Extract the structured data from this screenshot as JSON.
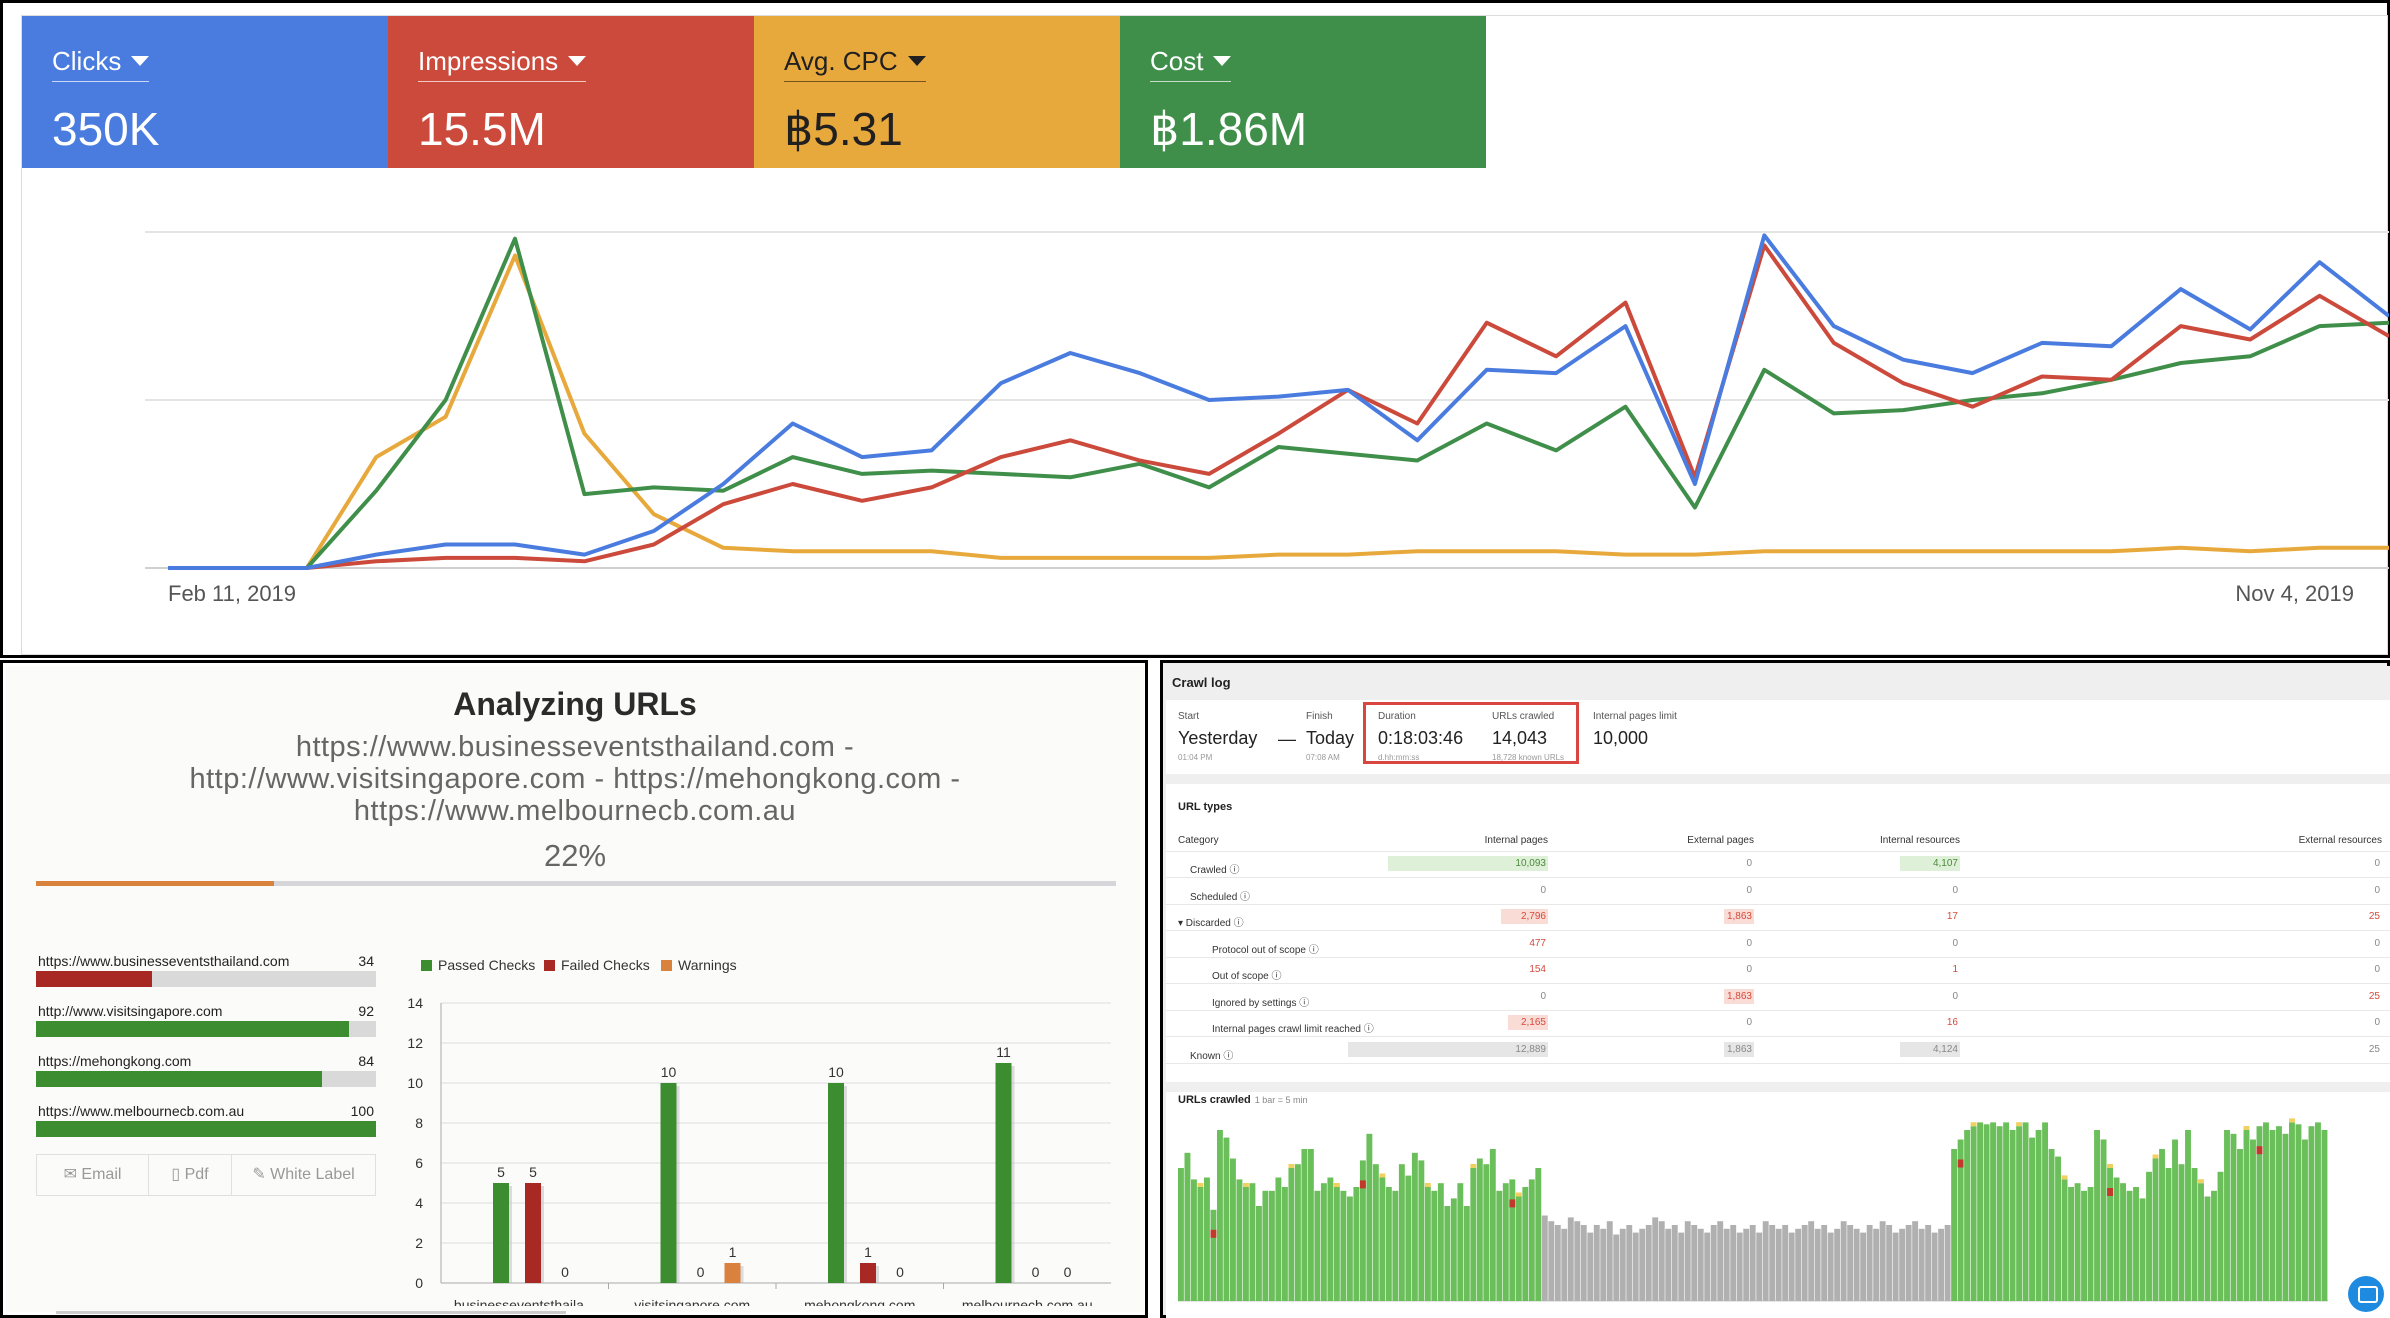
{
  "performance": {
    "metrics": [
      {
        "label": "Clicks",
        "value": "350K",
        "color": "#4a7cdf"
      },
      {
        "label": "Impressions",
        "value": "15.5M",
        "color": "#cc4a3b"
      },
      {
        "label": "Avg. CPC",
        "value": "฿5.31",
        "color": "#e8a93c"
      },
      {
        "label": "Cost",
        "value": "฿1.86M",
        "color": "#3f8f4a"
      }
    ],
    "x_start_label": "Feb 11, 2019",
    "x_end_label": "Nov 4, 2019"
  },
  "chart_data": [
    {
      "type": "line",
      "xlabel": "",
      "ylabel": "",
      "x_labels": [
        "Feb 11, 2019",
        "Nov 4, 2019"
      ],
      "series": [
        {
          "name": "Clicks",
          "color": "#4a7cdf",
          "values": [
            0,
            0,
            0,
            4,
            7,
            7,
            4,
            11,
            25,
            43,
            33,
            35,
            55,
            64,
            58,
            50,
            51,
            53,
            38,
            59,
            58,
            72,
            25,
            99,
            72,
            62,
            58,
            67,
            66,
            83,
            71,
            91,
            75
          ]
        },
        {
          "name": "Impressions",
          "color": "#cc4a3b",
          "values": [
            0,
            0,
            0,
            2,
            3,
            3,
            2,
            7,
            19,
            25,
            20,
            24,
            33,
            38,
            32,
            28,
            40,
            53,
            43,
            73,
            63,
            79,
            27,
            96,
            67,
            55,
            48,
            57,
            56,
            72,
            68,
            81,
            69
          ]
        },
        {
          "name": "Avg. CPC",
          "color": "#e8a93c",
          "values": [
            0,
            0,
            0,
            33,
            45,
            93,
            40,
            16,
            6,
            5,
            5,
            5,
            3,
            3,
            3,
            3,
            4,
            4,
            5,
            5,
            5,
            4,
            4,
            5,
            5,
            5,
            5,
            5,
            5,
            6,
            5,
            6,
            6
          ]
        },
        {
          "name": "Cost",
          "color": "#3f8f4a",
          "values": [
            0,
            0,
            0,
            23,
            50,
            98,
            22,
            24,
            23,
            33,
            28,
            29,
            28,
            27,
            31,
            24,
            36,
            34,
            32,
            43,
            35,
            48,
            18,
            59,
            46,
            47,
            50,
            52,
            56,
            61,
            63,
            72,
            73
          ]
        }
      ]
    },
    {
      "type": "bar",
      "categories": [
        "businesseventsthaila...",
        "visitsingapore.com",
        "mehongkong.com",
        "melbournecb.com.au"
      ],
      "ylim": [
        0,
        14
      ],
      "yticks": [
        "0",
        "2",
        "4",
        "6",
        "8",
        "10",
        "12",
        "14"
      ],
      "series": [
        {
          "name": "Passed Checks",
          "color": "#3c8c30",
          "values": [
            5,
            10,
            10,
            11
          ]
        },
        {
          "name": "Failed Checks",
          "color": "#a82823",
          "values": [
            5,
            0,
            1,
            0
          ]
        },
        {
          "name": "Warnings",
          "color": "#d9823d",
          "values": [
            0,
            1,
            0,
            0
          ]
        }
      ]
    },
    {
      "type": "bar",
      "title": "URLs crawled",
      "subtitle": "1 bar = 5 min",
      "series": [
        {
          "name": "Crawled",
          "color": "#6bbf5a",
          "values": [
            70,
            78,
            64,
            60,
            65,
            48,
            90,
            86,
            75,
            64,
            60,
            62,
            50,
            58,
            58,
            65,
            60,
            70,
            72,
            80,
            80,
            58,
            62,
            65,
            60,
            58,
            55,
            60,
            74,
            88,
            72,
            65,
            60,
            58,
            72,
            66,
            78,
            74,
            60,
            58,
            62,
            50,
            54,
            62,
            50,
            70,
            75,
            72,
            80,
            58,
            62,
            64,
            55,
            60,
            64,
            70,
            45,
            42,
            40,
            38,
            44,
            42,
            40,
            36,
            40,
            38,
            42,
            35,
            38,
            40,
            36,
            38,
            40,
            44,
            42,
            38,
            40,
            36,
            42,
            40,
            38,
            36,
            40,
            42,
            38,
            40,
            36,
            38,
            40,
            36,
            42,
            40,
            38,
            40,
            36,
            38,
            40,
            42,
            38,
            40,
            36,
            38,
            42,
            40,
            38,
            36,
            40,
            38,
            42,
            40,
            36,
            38,
            40,
            42,
            38,
            40,
            36,
            38,
            40,
            80,
            85,
            90,
            92,
            94,
            93,
            94,
            92,
            94,
            90,
            92,
            94,
            86,
            90,
            94,
            80,
            76,
            64,
            60,
            62,
            58,
            60,
            90,
            85,
            70,
            65,
            62,
            58,
            60,
            54,
            68,
            75,
            80,
            70,
            85,
            72,
            90,
            70,
            62,
            55,
            58,
            68,
            90,
            88,
            80,
            90,
            85,
            92,
            94,
            90,
            92,
            88,
            94,
            93,
            85,
            92,
            94,
            90
          ]
        },
        {
          "name": "Discarded",
          "color": "#b0b0b0",
          "values": []
        }
      ]
    }
  ],
  "analyze": {
    "title": "Analyzing URLs",
    "urls_text": "https://www.businesseventsthailand.com - http://www.visitsingapore.com - https://mehongkong.com - https://www.melbournecb.com.au",
    "percent_label": "22%",
    "progress": 0.22,
    "sites": [
      {
        "name": "https://www.businesseventsthailand.com",
        "score": "34",
        "value": 34,
        "color": "#a82823"
      },
      {
        "name": "http://www.visitsingapore.com",
        "score": "92",
        "value": 92,
        "color": "#3c8c30"
      },
      {
        "name": "https://mehongkong.com",
        "score": "84",
        "value": 84,
        "color": "#3c8c30"
      },
      {
        "name": "https://www.melbournecb.com.au",
        "score": "100",
        "value": 100,
        "color": "#3c8c30"
      }
    ],
    "buttons": [
      "Email",
      "Pdf",
      "White Label"
    ],
    "legend": [
      "Passed Checks",
      "Failed Checks",
      "Warnings"
    ]
  },
  "crawl": {
    "header": "Crawl log",
    "start_label": "Start",
    "start_value": "Yesterday",
    "start_sub": "01:04 PM",
    "dash": "—",
    "finish_label": "Finish",
    "finish_value": "Today",
    "finish_sub": "07:08 AM",
    "duration_label": "Duration",
    "duration_value": "0:18:03:46",
    "duration_sub": "d.hh:mm:ss",
    "urls_label": "URLs crawled",
    "urls_value": "14,043",
    "urls_sub": "18,728 known URLs",
    "limit_label": "Internal pages limit",
    "limit_value": "10,000",
    "types_title": "URL types",
    "columns": [
      "Category",
      "Internal pages",
      "External pages",
      "Internal resources",
      "External resources"
    ],
    "rows": [
      {
        "cat": "Crawled",
        "indent": 1,
        "vals": [
          "10,093",
          "0",
          "4,107",
          "0"
        ],
        "styles": [
          "green",
          "grey",
          "green",
          "grey"
        ]
      },
      {
        "cat": "Scheduled",
        "indent": 1,
        "vals": [
          "0",
          "0",
          "0",
          "0"
        ],
        "styles": [
          "grey",
          "grey",
          "grey",
          "grey"
        ]
      },
      {
        "cat": "▾ Discarded",
        "indent": 0,
        "vals": [
          "2,796",
          "1,863",
          "17",
          "25"
        ],
        "styles": [
          "red",
          "red",
          "red",
          "red"
        ]
      },
      {
        "cat": "Protocol out of scope",
        "indent": 2,
        "vals": [
          "477",
          "0",
          "0",
          "0"
        ],
        "styles": [
          "red",
          "grey",
          "grey",
          "grey"
        ]
      },
      {
        "cat": "Out of scope",
        "indent": 2,
        "vals": [
          "154",
          "0",
          "1",
          "0"
        ],
        "styles": [
          "red",
          "grey",
          "red",
          "grey"
        ]
      },
      {
        "cat": "Ignored by settings",
        "indent": 2,
        "vals": [
          "0",
          "1,863",
          "0",
          "25"
        ],
        "styles": [
          "grey",
          "red",
          "grey",
          "red"
        ]
      },
      {
        "cat": "Internal pages crawl limit reached",
        "indent": 2,
        "vals": [
          "2,165",
          "0",
          "16",
          "0"
        ],
        "styles": [
          "red",
          "grey",
          "red",
          "grey"
        ]
      },
      {
        "cat": "Known",
        "indent": 1,
        "vals": [
          "12,889",
          "1,863",
          "4,124",
          "25"
        ],
        "styles": [
          "grey",
          "grey",
          "grey",
          "grey"
        ]
      }
    ],
    "bars_title": "URLs crawled",
    "bars_sub": "1 bar = 5 min"
  }
}
